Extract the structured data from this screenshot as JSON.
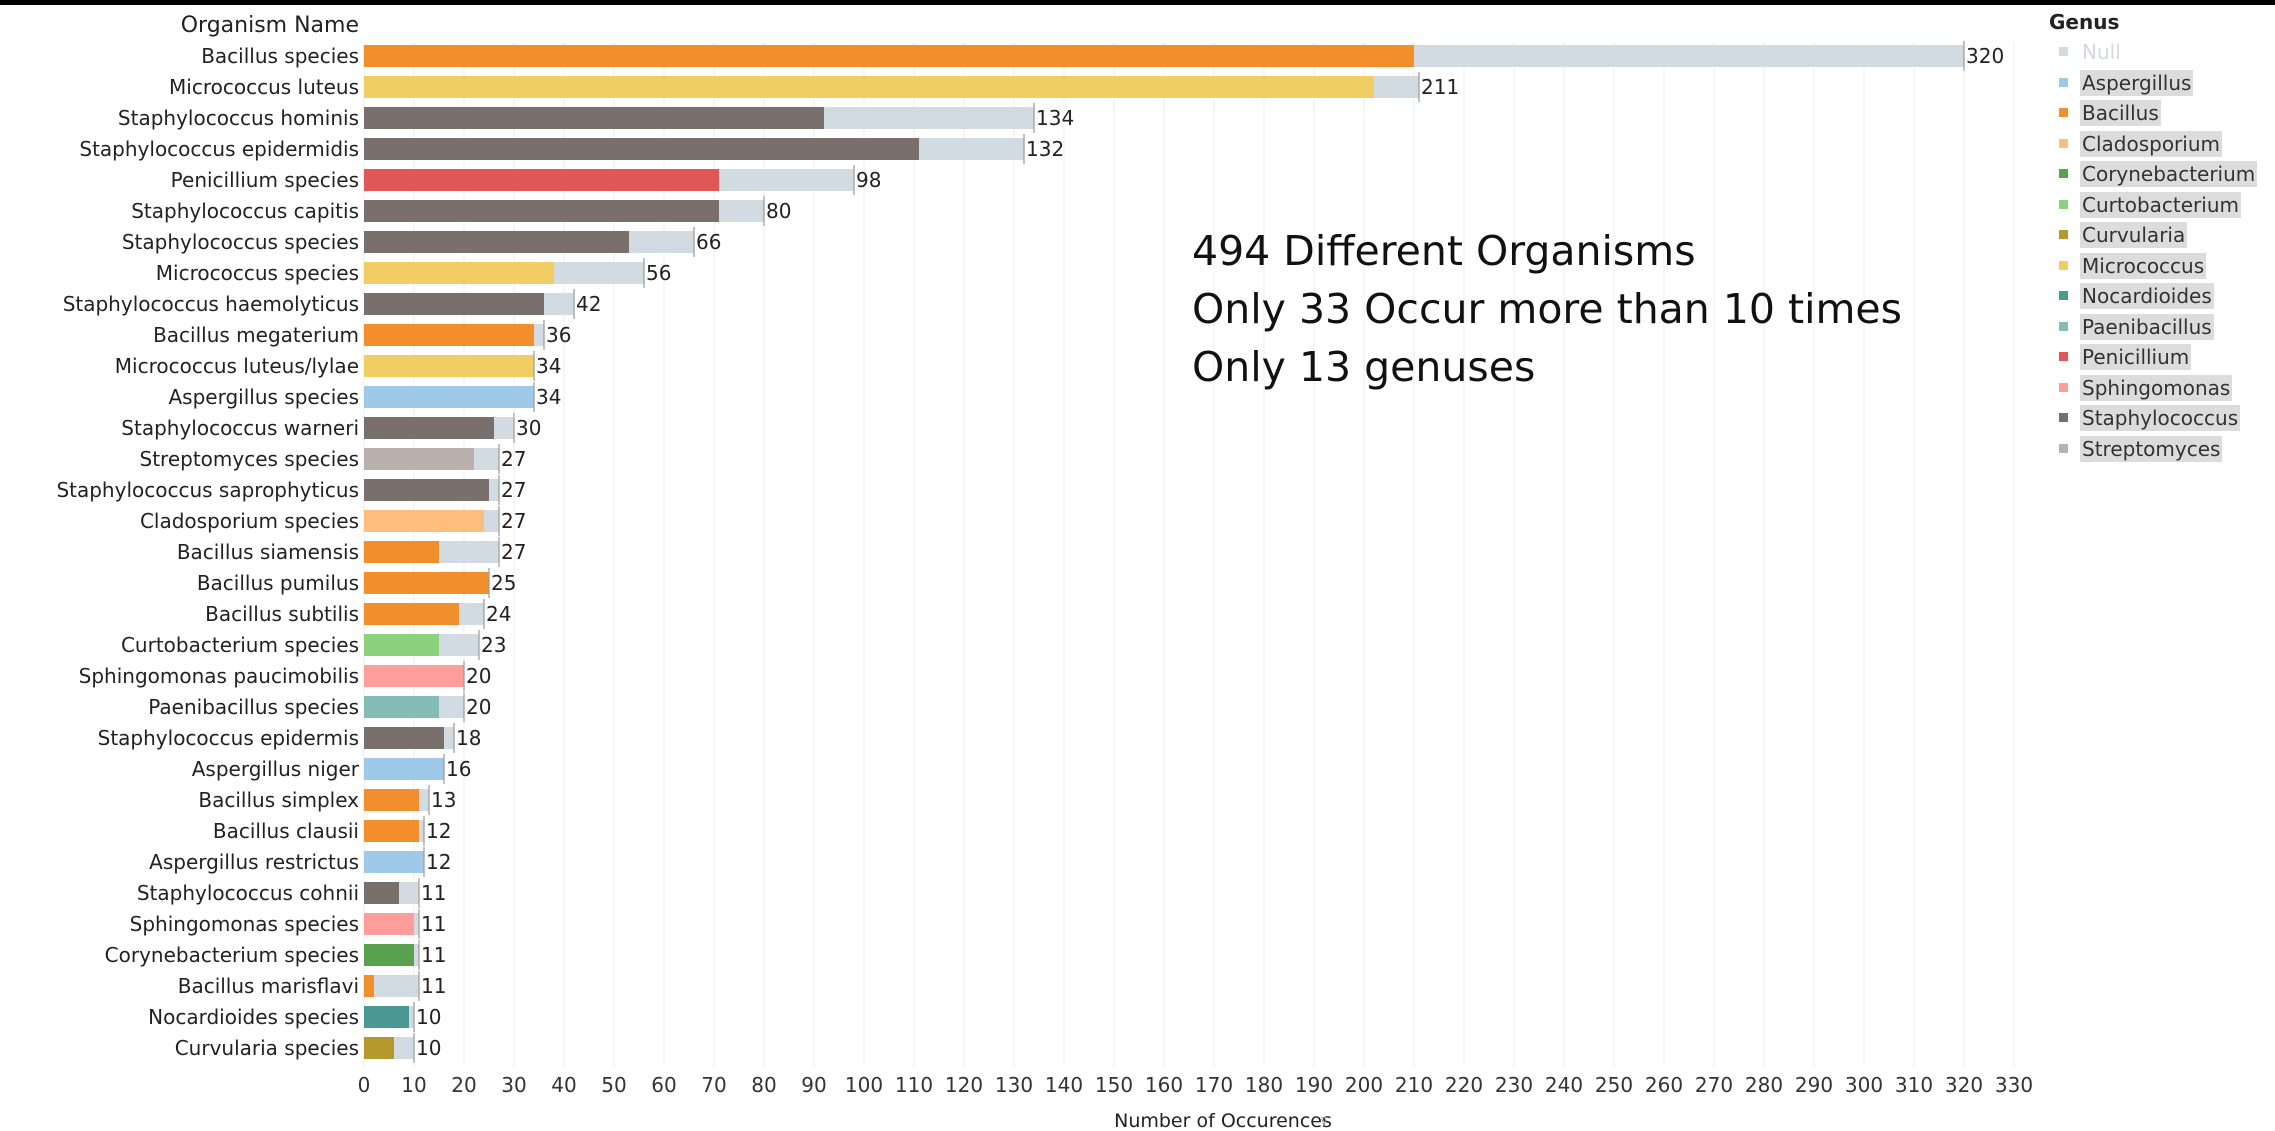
{
  "chart_data": {
    "type": "bar",
    "orientation": "horizontal",
    "row_header": "Organism Name",
    "xlabel": "Number of Occurences",
    "xlim": [
      0,
      330
    ],
    "xticks": [
      0,
      10,
      20,
      30,
      40,
      50,
      60,
      70,
      80,
      90,
      100,
      110,
      120,
      130,
      140,
      150,
      160,
      170,
      180,
      190,
      200,
      210,
      220,
      230,
      240,
      250,
      260,
      270,
      280,
      290,
      300,
      310,
      320,
      330
    ],
    "grid": "vertical",
    "legend_title": "Genus",
    "legend_position": "right",
    "legend": [
      {
        "name": "Null",
        "color": "#d3dbe2"
      },
      {
        "name": "Aspergillus",
        "color": "#9fc9e8"
      },
      {
        "name": "Bacillus",
        "color": "#f28e2b"
      },
      {
        "name": "Cladosporium",
        "color": "#ffbe7d"
      },
      {
        "name": "Corynebacterium",
        "color": "#59a14f"
      },
      {
        "name": "Curtobacterium",
        "color": "#8cd17d"
      },
      {
        "name": "Curvularia",
        "color": "#b6992d"
      },
      {
        "name": "Micrococcus",
        "color": "#f1ce63"
      },
      {
        "name": "Nocardioides",
        "color": "#499894"
      },
      {
        "name": "Paenibacillus",
        "color": "#86bcb6"
      },
      {
        "name": "Penicillium",
        "color": "#e15759"
      },
      {
        "name": "Sphingomonas",
        "color": "#ff9d9a"
      },
      {
        "name": "Staphylococcus",
        "color": "#79706e"
      },
      {
        "name": "Streptomyces",
        "color": "#bab0ac"
      }
    ],
    "rows": [
      {
        "name": "Bacillus species",
        "genus": "Bacillus",
        "genus_count": 210,
        "total": 320
      },
      {
        "name": "Micrococcus luteus",
        "genus": "Micrococcus",
        "genus_count": 202,
        "total": 211
      },
      {
        "name": "Staphylococcus hominis",
        "genus": "Staphylococcus",
        "genus_count": 92,
        "total": 134
      },
      {
        "name": "Staphylococcus epidermidis",
        "genus": "Staphylococcus",
        "genus_count": 111,
        "total": 132
      },
      {
        "name": "Penicillium species",
        "genus": "Penicillium",
        "genus_count": 71,
        "total": 98
      },
      {
        "name": "Staphylococcus capitis",
        "genus": "Staphylococcus",
        "genus_count": 71,
        "total": 80
      },
      {
        "name": "Staphylococcus species",
        "genus": "Staphylococcus",
        "genus_count": 53,
        "total": 66
      },
      {
        "name": "Micrococcus species",
        "genus": "Micrococcus",
        "genus_count": 38,
        "total": 56
      },
      {
        "name": "Staphylococcus haemolyticus",
        "genus": "Staphylococcus",
        "genus_count": 36,
        "total": 42
      },
      {
        "name": "Bacillus megaterium",
        "genus": "Bacillus",
        "genus_count": 34,
        "total": 36
      },
      {
        "name": "Micrococcus luteus/lylae",
        "genus": "Micrococcus",
        "genus_count": 34,
        "total": 34
      },
      {
        "name": "Aspergillus species",
        "genus": "Aspergillus",
        "genus_count": 34,
        "total": 34
      },
      {
        "name": "Staphylococcus warneri",
        "genus": "Staphylococcus",
        "genus_count": 26,
        "total": 30
      },
      {
        "name": "Streptomyces species",
        "genus": "Streptomyces",
        "genus_count": 22,
        "total": 27
      },
      {
        "name": "Staphylococcus saprophyticus",
        "genus": "Staphylococcus",
        "genus_count": 25,
        "total": 27
      },
      {
        "name": "Cladosporium species",
        "genus": "Cladosporium",
        "genus_count": 24,
        "total": 27
      },
      {
        "name": "Bacillus siamensis",
        "genus": "Bacillus",
        "genus_count": 15,
        "total": 27
      },
      {
        "name": "Bacillus pumilus",
        "genus": "Bacillus",
        "genus_count": 25,
        "total": 25
      },
      {
        "name": "Bacillus subtilis",
        "genus": "Bacillus",
        "genus_count": 19,
        "total": 24
      },
      {
        "name": "Curtobacterium species",
        "genus": "Curtobacterium",
        "genus_count": 15,
        "total": 23
      },
      {
        "name": "Sphingomonas paucimobilis",
        "genus": "Sphingomonas",
        "genus_count": 20,
        "total": 20
      },
      {
        "name": "Paenibacillus species",
        "genus": "Paenibacillus",
        "genus_count": 15,
        "total": 20
      },
      {
        "name": "Staphylococcus epidermis",
        "genus": "Staphylococcus",
        "genus_count": 16,
        "total": 18
      },
      {
        "name": "Aspergillus niger",
        "genus": "Aspergillus",
        "genus_count": 16,
        "total": 16
      },
      {
        "name": "Bacillus simplex",
        "genus": "Bacillus",
        "genus_count": 11,
        "total": 13
      },
      {
        "name": "Bacillus clausii",
        "genus": "Bacillus",
        "genus_count": 11,
        "total": 12
      },
      {
        "name": "Aspergillus restrictus",
        "genus": "Aspergillus",
        "genus_count": 12,
        "total": 12
      },
      {
        "name": "Staphylococcus cohnii",
        "genus": "Staphylococcus",
        "genus_count": 7,
        "total": 11
      },
      {
        "name": "Sphingomonas species",
        "genus": "Sphingomonas",
        "genus_count": 10,
        "total": 11
      },
      {
        "name": "Corynebacterium species",
        "genus": "Corynebacterium",
        "genus_count": 10,
        "total": 11
      },
      {
        "name": "Bacillus marisflavi",
        "genus": "Bacillus",
        "genus_count": 2,
        "total": 11
      },
      {
        "name": "Nocardioides species",
        "genus": "Nocardioides",
        "genus_count": 9,
        "total": 10
      },
      {
        "name": "Curvularia species",
        "genus": "Curvularia",
        "genus_count": 6,
        "total": 10
      }
    ]
  },
  "annotation": {
    "line1": "494 Different Organisms",
    "line2": "Only 33 Occur more than 10 times",
    "line3": "Only 13 genuses"
  }
}
